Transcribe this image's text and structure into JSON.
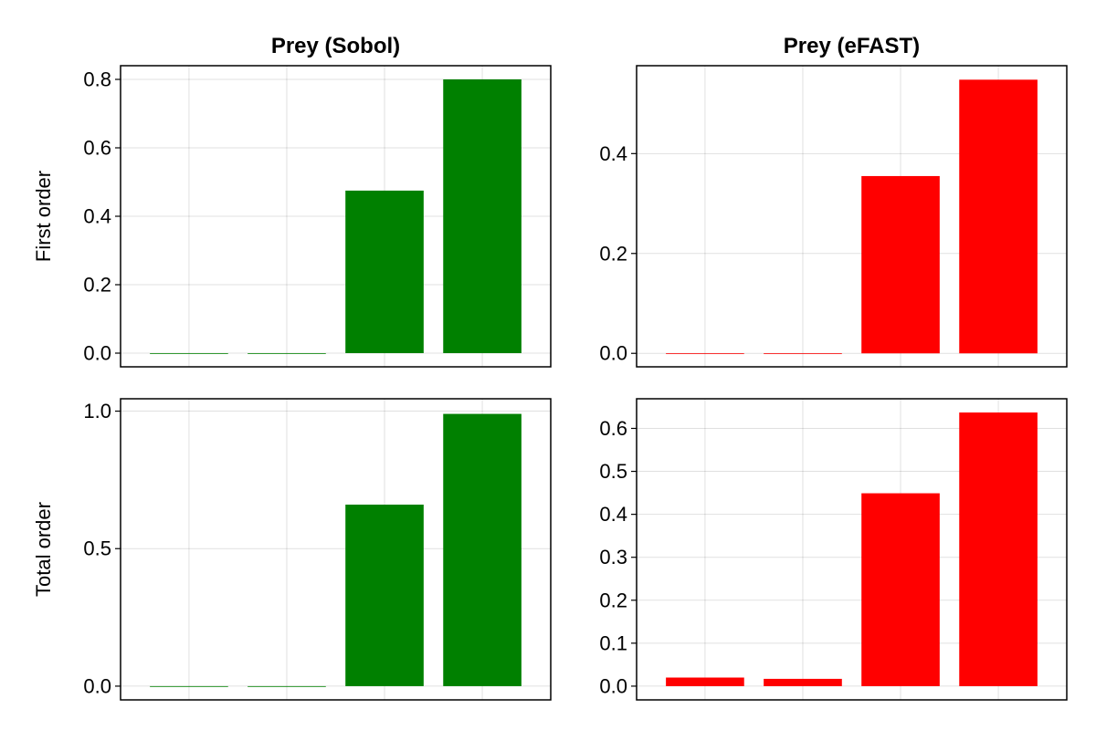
{
  "chart_data": [
    {
      "type": "bar",
      "title": "Prey (Sobol)",
      "ylabel": "First order",
      "categories": [
        "",
        "",
        "",
        ""
      ],
      "values": [
        0.0,
        0.0,
        0.475,
        0.8
      ],
      "color": "#008000",
      "ylim": [
        -0.04,
        0.84
      ],
      "yticks": [
        0.0,
        0.2,
        0.4,
        0.6,
        0.8
      ],
      "ytick_labels": [
        "0.0",
        "0.2",
        "0.4",
        "0.6",
        "0.8"
      ],
      "grid": true
    },
    {
      "type": "bar",
      "title": "Prey (eFAST)",
      "ylabel": "",
      "categories": [
        "",
        "",
        "",
        ""
      ],
      "values": [
        0.0,
        0.0,
        0.355,
        0.548
      ],
      "color": "#ff0000",
      "ylim": [
        -0.027,
        0.576
      ],
      "yticks": [
        0.0,
        0.2,
        0.4
      ],
      "ytick_labels": [
        "0.0",
        "0.2",
        "0.4"
      ],
      "grid": true
    },
    {
      "type": "bar",
      "title": "",
      "ylabel": "Total order",
      "categories": [
        "",
        "",
        "",
        ""
      ],
      "values": [
        0.0,
        0.0,
        0.66,
        0.99
      ],
      "color": "#008000",
      "ylim": [
        -0.05,
        1.045
      ],
      "yticks": [
        0.0,
        0.5,
        1.0
      ],
      "ytick_labels": [
        "0.0",
        "0.5",
        "1.0"
      ],
      "grid": true
    },
    {
      "type": "bar",
      "title": "",
      "ylabel": "",
      "categories": [
        "",
        "",
        "",
        ""
      ],
      "values": [
        0.02,
        0.017,
        0.449,
        0.637
      ],
      "color": "#ff0000",
      "ylim": [
        -0.032,
        0.669
      ],
      "yticks": [
        0.0,
        0.1,
        0.2,
        0.3,
        0.4,
        0.5,
        0.6
      ],
      "ytick_labels": [
        "0.0",
        "0.1",
        "0.2",
        "0.3",
        "0.4",
        "0.5",
        "0.6"
      ],
      "grid": true
    }
  ]
}
